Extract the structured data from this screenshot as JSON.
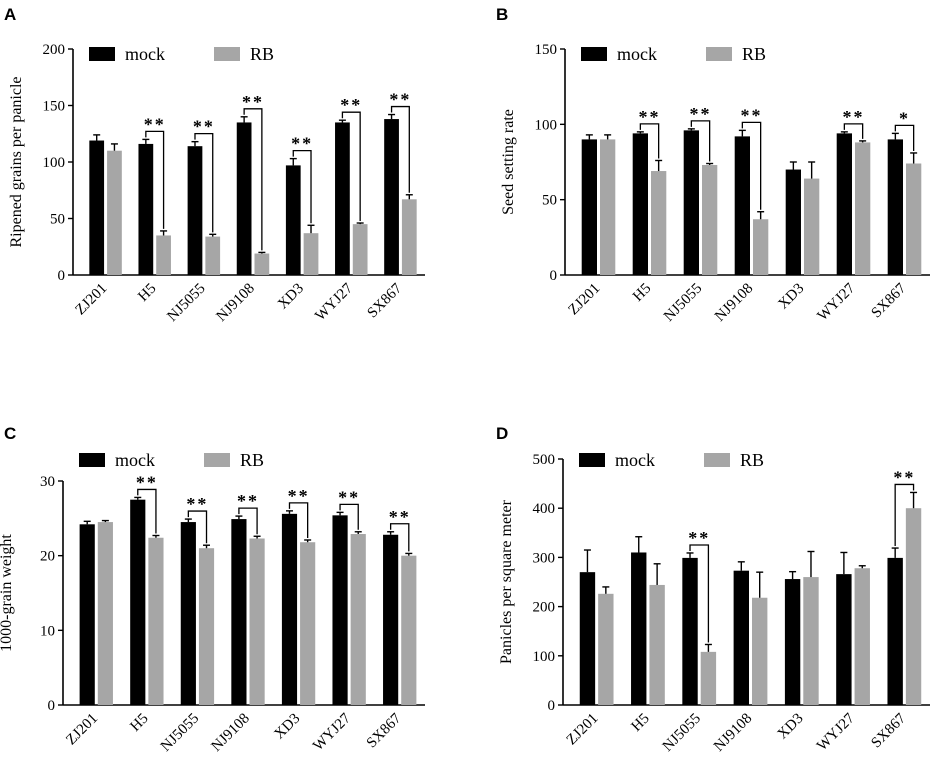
{
  "legend": {
    "series": [
      {
        "name": "mock",
        "color": "#000000"
      },
      {
        "name": "RB",
        "color": "#a6a6a6"
      }
    ]
  },
  "chart_data": [
    {
      "panel": "A",
      "type": "bar",
      "ylabel": "Ripened grains per panicle",
      "ylim": [
        0,
        200
      ],
      "yticks": [
        0,
        50,
        100,
        150,
        200
      ],
      "categories": [
        "ZJ201",
        "H5",
        "NJ5055",
        "NJ9108",
        "XD3",
        "WYJ27",
        "SX867"
      ],
      "series": [
        {
          "name": "mock",
          "values": [
            119,
            116,
            114,
            135,
            97,
            135,
            138
          ],
          "errors": [
            5,
            4,
            4,
            5,
            6,
            2,
            4
          ]
        },
        {
          "name": "RB",
          "values": [
            110,
            35,
            34,
            19,
            37,
            45,
            67
          ],
          "errors": [
            6,
            4,
            2,
            1,
            7,
            1,
            4
          ]
        }
      ],
      "significance": [
        "",
        "**",
        "**",
        "**",
        "**",
        "**",
        "**"
      ]
    },
    {
      "panel": "B",
      "type": "bar",
      "ylabel": "Seed setting rate",
      "ylim": [
        0,
        150
      ],
      "yticks": [
        0,
        50,
        100,
        150
      ],
      "categories": [
        "ZJ201",
        "H5",
        "NJ5055",
        "NJ9108",
        "XD3",
        "WYJ27",
        "SX867"
      ],
      "series": [
        {
          "name": "mock",
          "values": [
            90,
            94,
            96,
            92,
            70,
            94,
            90
          ],
          "errors": [
            3,
            1,
            1,
            4,
            5,
            1,
            4
          ]
        },
        {
          "name": "RB",
          "values": [
            90,
            69,
            73,
            37,
            64,
            88,
            74
          ],
          "errors": [
            3,
            7,
            1,
            5,
            11,
            1,
            7
          ]
        }
      ],
      "significance": [
        "",
        "**",
        "**",
        "**",
        "",
        "**",
        "*"
      ]
    },
    {
      "panel": "C",
      "type": "bar",
      "ylabel": "1000-grain weight",
      "ylim": [
        0,
        30
      ],
      "yticks": [
        0,
        10,
        20,
        30
      ],
      "categories": [
        "ZJ201",
        "H5",
        "NJ5055",
        "NJ9108",
        "XD3",
        "WYJ27",
        "SX867"
      ],
      "series": [
        {
          "name": "mock",
          "values": [
            24.2,
            27.5,
            24.5,
            24.9,
            25.6,
            25.4,
            22.8
          ],
          "errors": [
            0.4,
            0.3,
            0.4,
            0.4,
            0.4,
            0.4,
            0.4
          ]
        },
        {
          "name": "RB",
          "values": [
            24.5,
            22.4,
            21.0,
            22.3,
            21.8,
            22.9,
            20.0
          ],
          "errors": [
            0.2,
            0.3,
            0.4,
            0.3,
            0.3,
            0.3,
            0.3
          ]
        }
      ],
      "significance": [
        "",
        "**",
        "**",
        "**",
        "**",
        "**",
        "**"
      ]
    },
    {
      "panel": "D",
      "type": "bar",
      "ylabel": "Panicles per square meter",
      "ylim": [
        0,
        500
      ],
      "yticks": [
        0,
        100,
        200,
        300,
        400,
        500
      ],
      "categories": [
        "ZJ201",
        "H5",
        "NJ5055",
        "NJ9108",
        "XD3",
        "WYJ27",
        "SX867"
      ],
      "series": [
        {
          "name": "mock",
          "values": [
            270,
            310,
            299,
            273,
            256,
            266,
            299
          ],
          "errors": [
            45,
            32,
            10,
            18,
            15,
            44,
            20
          ]
        },
        {
          "name": "RB",
          "values": [
            226,
            244,
            108,
            218,
            260,
            278,
            400
          ],
          "errors": [
            14,
            43,
            15,
            52,
            52,
            5,
            32
          ]
        }
      ],
      "significance": [
        "",
        "",
        "**",
        "",
        "",
        "",
        "**"
      ]
    }
  ]
}
